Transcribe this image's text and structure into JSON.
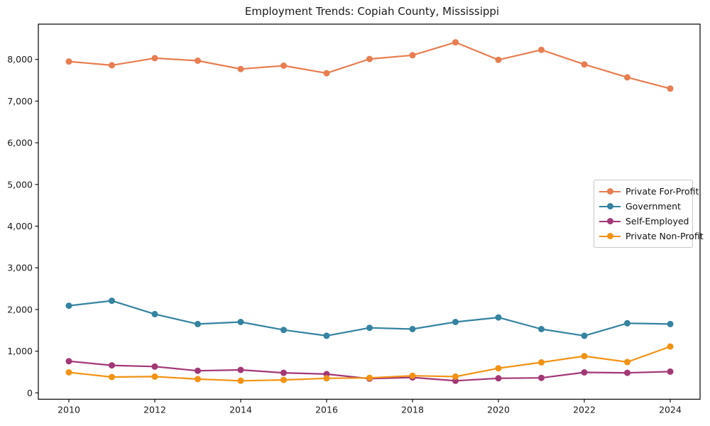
{
  "title": "Employment Trends: Copiah County, Mississippi",
  "chart_data": {
    "type": "line",
    "title": "Employment Trends: Copiah County, Mississippi",
    "xlabel": "",
    "ylabel": "",
    "grid": false,
    "legend_position": "center right",
    "x": [
      2010,
      2011,
      2012,
      2013,
      2014,
      2015,
      2016,
      2017,
      2018,
      2019,
      2020,
      2021,
      2022,
      2023,
      2024
    ],
    "x_ticks": [
      2010,
      2012,
      2014,
      2016,
      2018,
      2020,
      2022,
      2024
    ],
    "y_ticks": [
      0,
      1000,
      2000,
      3000,
      4000,
      5000,
      6000,
      7000,
      8000
    ],
    "y_tick_labels": [
      "0",
      "1,000",
      "2,000",
      "3,000",
      "4,000",
      "5,000",
      "6,000",
      "7,000",
      "8,000"
    ],
    "ylim": [
      -150,
      8850
    ],
    "xlim": [
      2009.3,
      2024.7
    ],
    "series": [
      {
        "name": "Private For-Profit",
        "color": "#e87d50",
        "values": [
          7950,
          7860,
          8030,
          7970,
          7770,
          7850,
          7670,
          8010,
          8100,
          8410,
          7990,
          8230,
          7880,
          7570,
          7300
        ]
      },
      {
        "name": "Government",
        "color": "#3483a0",
        "values": [
          2090,
          2210,
          1890,
          1650,
          1700,
          1510,
          1370,
          1560,
          1530,
          1700,
          1810,
          1530,
          1370,
          1670,
          1650
        ]
      },
      {
        "name": "Self-Employed",
        "color": "#a33776",
        "values": [
          760,
          660,
          630,
          530,
          550,
          480,
          450,
          340,
          370,
          290,
          350,
          360,
          490,
          480,
          510
        ]
      },
      {
        "name": "Private Non-Profit",
        "color": "#f29214",
        "values": [
          490,
          380,
          390,
          330,
          290,
          310,
          350,
          360,
          410,
          390,
          590,
          730,
          880,
          740,
          1110
        ]
      }
    ]
  }
}
